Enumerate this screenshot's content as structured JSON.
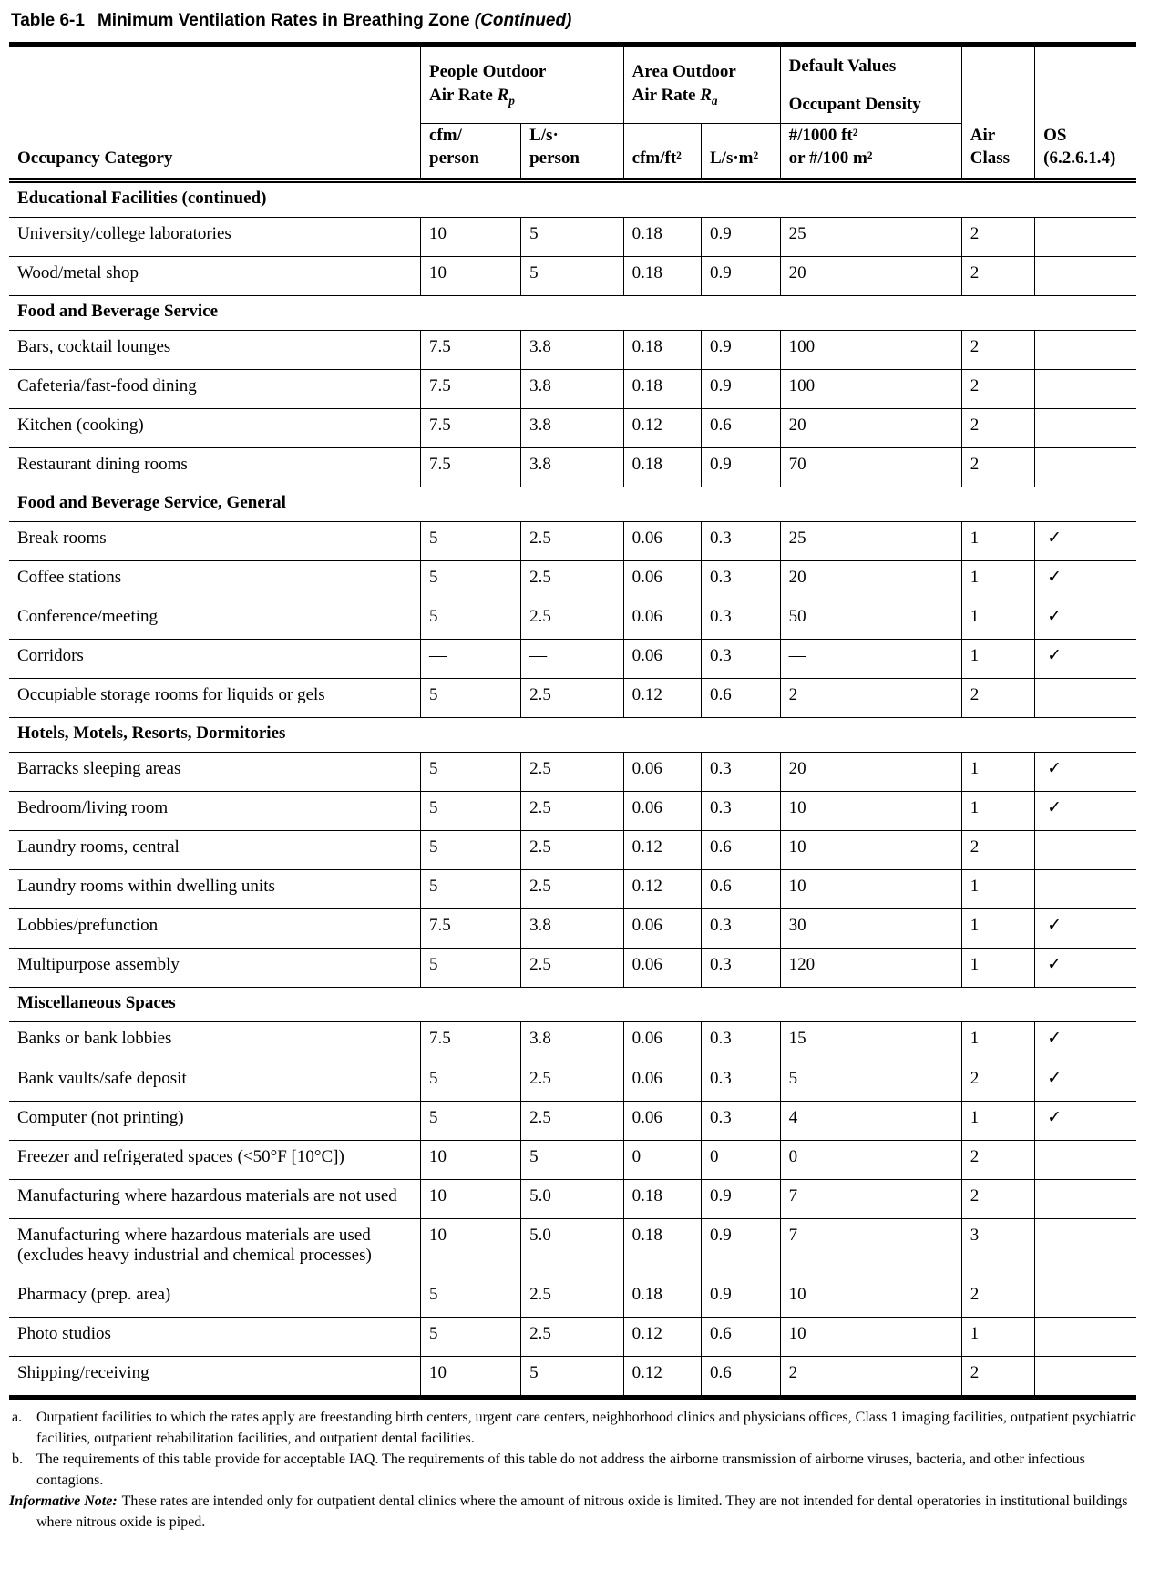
{
  "title": {
    "table_number": "Table 6-1",
    "text": "Minimum Ventilation Rates in Breathing Zone",
    "continued": "(Continued)"
  },
  "table": {
    "header": {
      "occupancy_category": "Occupancy Category",
      "people_outdoor": {
        "line1": "People Outdoor",
        "line2_prefix": "Air Rate ",
        "symbol": "R",
        "subscript": "p"
      },
      "area_outdoor": {
        "line1": "Area Outdoor",
        "line2_prefix": "Air Rate ",
        "symbol": "R",
        "subscript": "a"
      },
      "default_values": "Default Values",
      "occupant_density": "Occupant Density",
      "units": {
        "cfm_person": [
          "cfm/",
          "person"
        ],
        "ls_person": [
          "L/s·",
          "person"
        ],
        "cfm_ft2": "cfm/ft²",
        "ls_m2": "L/s·m²",
        "density": [
          "#/1000 ft²",
          "or #/100 m²"
        ],
        "air_class": [
          "Air",
          "Class"
        ],
        "os": [
          "OS",
          "(6.2.6.1.4)"
        ]
      }
    },
    "checkmark": "✓",
    "sections": [
      {
        "name": "Educational Facilities (continued)",
        "rows": [
          {
            "category": "University/college laboratories",
            "cfm_person": "10",
            "ls_person": "5",
            "cfm_ft2": "0.18",
            "ls_m2": "0.9",
            "density": "25",
            "air_class": "2",
            "os": false
          },
          {
            "category": "Wood/metal shop",
            "cfm_person": "10",
            "ls_person": "5",
            "cfm_ft2": "0.18",
            "ls_m2": "0.9",
            "density": "20",
            "air_class": "2",
            "os": false
          }
        ]
      },
      {
        "name": "Food and Beverage Service",
        "rows": [
          {
            "category": "Bars, cocktail lounges",
            "cfm_person": "7.5",
            "ls_person": "3.8",
            "cfm_ft2": "0.18",
            "ls_m2": "0.9",
            "density": "100",
            "air_class": "2",
            "os": false
          },
          {
            "category": "Cafeteria/fast-food dining",
            "cfm_person": "7.5",
            "ls_person": "3.8",
            "cfm_ft2": "0.18",
            "ls_m2": "0.9",
            "density": "100",
            "air_class": "2",
            "os": false
          },
          {
            "category": "Kitchen (cooking)",
            "cfm_person": "7.5",
            "ls_person": "3.8",
            "cfm_ft2": "0.12",
            "ls_m2": "0.6",
            "density": "20",
            "air_class": "2",
            "os": false
          },
          {
            "category": "Restaurant dining rooms",
            "cfm_person": "7.5",
            "ls_person": "3.8",
            "cfm_ft2": "0.18",
            "ls_m2": "0.9",
            "density": "70",
            "air_class": "2",
            "os": false
          }
        ]
      },
      {
        "name": "Food and Beverage Service, General",
        "rows": [
          {
            "category": "Break rooms",
            "cfm_person": "5",
            "ls_person": "2.5",
            "cfm_ft2": "0.06",
            "ls_m2": "0.3",
            "density": "25",
            "air_class": "1",
            "os": true
          },
          {
            "category": "Coffee stations",
            "cfm_person": "5",
            "ls_person": "2.5",
            "cfm_ft2": "0.06",
            "ls_m2": "0.3",
            "density": "20",
            "air_class": "1",
            "os": true
          },
          {
            "category": "Conference/meeting",
            "cfm_person": "5",
            "ls_person": "2.5",
            "cfm_ft2": "0.06",
            "ls_m2": "0.3",
            "density": "50",
            "air_class": "1",
            "os": true
          },
          {
            "category": "Corridors",
            "cfm_person": "—",
            "ls_person": "—",
            "cfm_ft2": "0.06",
            "ls_m2": "0.3",
            "density": "—",
            "air_class": "1",
            "os": true
          },
          {
            "category": "Occupiable storage rooms for liquids or gels",
            "cfm_person": "5",
            "ls_person": "2.5",
            "cfm_ft2": "0.12",
            "ls_m2": "0.6",
            "density": "2",
            "air_class": "2",
            "os": false
          }
        ]
      },
      {
        "name": "Hotels, Motels, Resorts, Dormitories",
        "rows": [
          {
            "category": "Barracks sleeping areas",
            "cfm_person": "5",
            "ls_person": "2.5",
            "cfm_ft2": "0.06",
            "ls_m2": "0.3",
            "density": "20",
            "air_class": "1",
            "os": true
          },
          {
            "category": "Bedroom/living room",
            "cfm_person": "5",
            "ls_person": "2.5",
            "cfm_ft2": "0.06",
            "ls_m2": "0.3",
            "density": "10",
            "air_class": "1",
            "os": true
          },
          {
            "category": "Laundry rooms, central",
            "cfm_person": "5",
            "ls_person": "2.5",
            "cfm_ft2": "0.12",
            "ls_m2": "0.6",
            "density": "10",
            "air_class": "2",
            "os": false
          },
          {
            "category": "Laundry rooms within dwelling units",
            "cfm_person": "5",
            "ls_person": "2.5",
            "cfm_ft2": "0.12",
            "ls_m2": "0.6",
            "density": "10",
            "air_class": "1",
            "os": false
          },
          {
            "category": "Lobbies/prefunction",
            "cfm_person": "7.5",
            "ls_person": "3.8",
            "cfm_ft2": "0.06",
            "ls_m2": "0.3",
            "density": "30",
            "air_class": "1",
            "os": true
          },
          {
            "category": "Multipurpose assembly",
            "cfm_person": "5",
            "ls_person": "2.5",
            "cfm_ft2": "0.06",
            "ls_m2": "0.3",
            "density": "120",
            "air_class": "1",
            "os": true
          }
        ]
      },
      {
        "name": "Miscellaneous Spaces",
        "rows": [
          {
            "category": "Banks or bank lobbies",
            "cfm_person": "7.5",
            "ls_person": "3.8",
            "cfm_ft2": "0.06",
            "ls_m2": "0.3",
            "density": "15",
            "air_class": "1",
            "os": true
          },
          {
            "category": "Bank vaults/safe deposit",
            "cfm_person": "5",
            "ls_person": "2.5",
            "cfm_ft2": "0.06",
            "ls_m2": "0.3",
            "density": "5",
            "air_class": "2",
            "os": true
          },
          {
            "category": "Computer (not printing)",
            "cfm_person": "5",
            "ls_person": "2.5",
            "cfm_ft2": "0.06",
            "ls_m2": "0.3",
            "density": "4",
            "air_class": "1",
            "os": true
          },
          {
            "category": "Freezer and refrigerated spaces (<50°F [10°C])",
            "cfm_person": "10",
            "ls_person": "5",
            "cfm_ft2": "0",
            "ls_m2": "0",
            "density": "0",
            "air_class": "2",
            "os": false
          },
          {
            "category": "Manufacturing where hazardous materials are not used",
            "cfm_person": "10",
            "ls_person": "5.0",
            "cfm_ft2": "0.18",
            "ls_m2": "0.9",
            "density": "7",
            "air_class": "2",
            "os": false
          },
          {
            "category": "Manufacturing where hazardous materials are used (excludes heavy industrial and chemical processes)",
            "cfm_person": "10",
            "ls_person": "5.0",
            "cfm_ft2": "0.18",
            "ls_m2": "0.9",
            "density": "7",
            "air_class": "3",
            "os": false
          },
          {
            "category": "Pharmacy (prep. area)",
            "cfm_person": "5",
            "ls_person": "2.5",
            "cfm_ft2": "0.18",
            "ls_m2": "0.9",
            "density": "10",
            "air_class": "2",
            "os": false
          },
          {
            "category": "Photo studios",
            "cfm_person": "5",
            "ls_person": "2.5",
            "cfm_ft2": "0.12",
            "ls_m2": "0.6",
            "density": "10",
            "air_class": "1",
            "os": false
          },
          {
            "category": "Shipping/receiving",
            "cfm_person": "10",
            "ls_person": "5",
            "cfm_ft2": "0.12",
            "ls_m2": "0.6",
            "density": "2",
            "air_class": "2",
            "os": false
          }
        ]
      }
    ]
  },
  "footnotes": [
    {
      "marker": "a.",
      "style": "letter",
      "text": "Outpatient facilities to which the rates apply are freestanding birth centers, urgent care centers, neighborhood clinics and physicians offices, Class 1 imaging facilities, outpatient psychiatric facilities, outpatient rehabilitation facilities, and outpatient dental facilities."
    },
    {
      "marker": "b.",
      "style": "letter",
      "text": "The requirements of this table provide for acceptable IAQ. The requirements of this table do not address the airborne transmission of airborne viruses, bacteria, and other infectious contagions."
    },
    {
      "marker": "Informative Note:",
      "style": "informative",
      "text": "These rates are intended only for outpatient dental clinics where the amount of nitrous oxide is limited. They are not intended for dental operatories in institutional buildings where nitrous oxide is piped."
    }
  ]
}
